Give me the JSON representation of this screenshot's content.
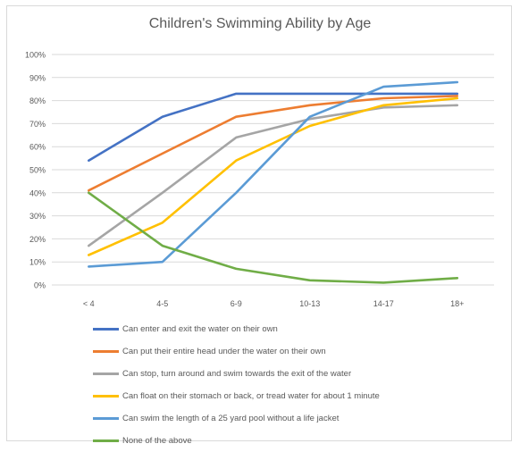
{
  "chart_data": {
    "type": "line",
    "title": "Children's Swimming Ability by Age",
    "xlabel": "",
    "ylabel": "",
    "categories": [
      "< 4",
      "4-5",
      "6-9",
      "10-13",
      "14-17",
      "18+"
    ],
    "ylim": [
      0,
      100
    ],
    "yticks": [
      "0%",
      "10%",
      "20%",
      "30%",
      "40%",
      "50%",
      "60%",
      "70%",
      "80%",
      "90%",
      "100%"
    ],
    "grid": true,
    "legend_position": "bottom",
    "series": [
      {
        "name": "Can enter and exit the water on their own",
        "color": "#4472c4",
        "values": [
          54,
          73,
          83,
          83,
          83,
          83
        ]
      },
      {
        "name": "Can put their entire head under the water on their own",
        "color": "#ed7d31",
        "values": [
          41,
          57,
          73,
          78,
          81,
          82
        ]
      },
      {
        "name": "Can stop, turn around and swim towards the exit of the water",
        "color": "#a5a5a5",
        "values": [
          17,
          40,
          64,
          72,
          77,
          78
        ]
      },
      {
        "name": "Can float on their stomach or back, or tread water for about 1 minute",
        "color": "#ffc000",
        "values": [
          13,
          27,
          54,
          69,
          78,
          81
        ]
      },
      {
        "name": "Can swim the length of a 25 yard pool without a life jacket",
        "color": "#5b9bd5",
        "values": [
          8,
          10,
          40,
          73,
          86,
          88
        ]
      },
      {
        "name": "None of the above",
        "color": "#70ad47",
        "values": [
          40,
          17,
          7,
          2,
          1,
          3
        ]
      }
    ]
  }
}
